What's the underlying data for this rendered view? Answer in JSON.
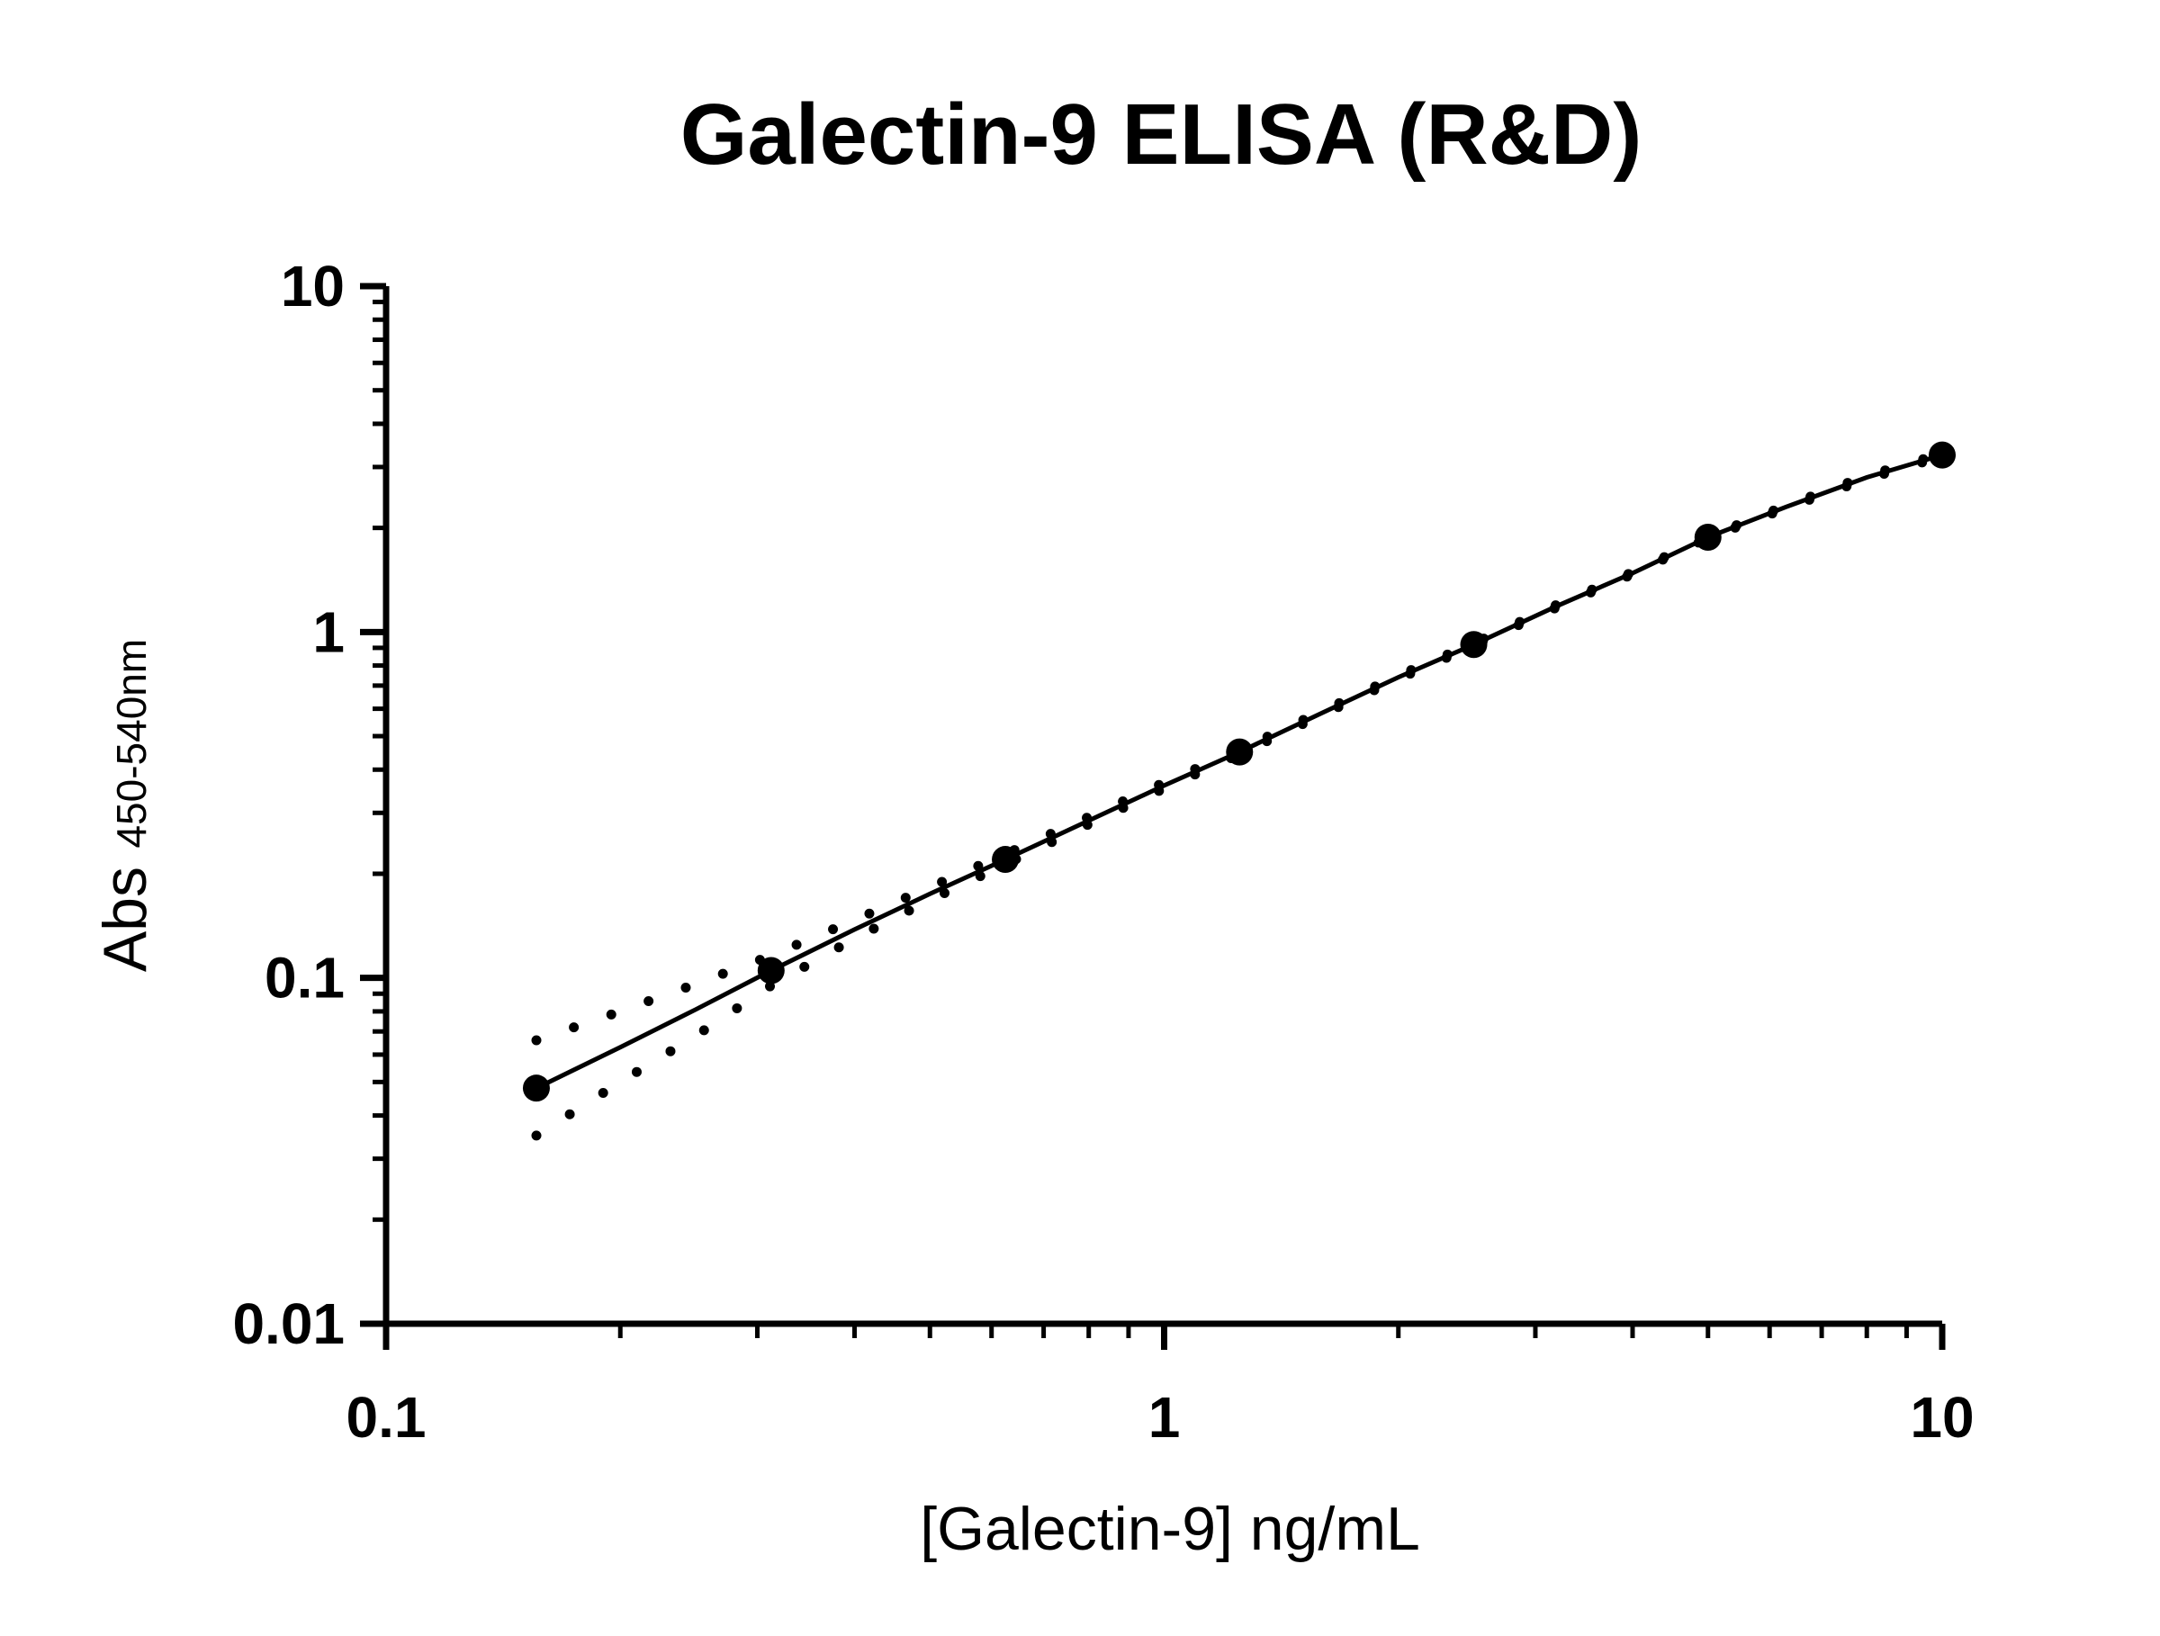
{
  "chart_data": {
    "type": "scatter",
    "title": "Galectin-9 ELISA (R&D)",
    "xlabel": "[Galectin-9] ng/mL",
    "ylabel": "Abs",
    "ylabel_subscript": "450-540nm",
    "x_scale": "log",
    "y_scale": "log",
    "xlim": [
      0.1,
      10
    ],
    "ylim": [
      0.01,
      10
    ],
    "x_ticks": [
      0.1,
      1,
      10
    ],
    "x_tick_labels": [
      "0.1",
      "1",
      "10"
    ],
    "y_ticks": [
      0.01,
      0.1,
      1,
      10
    ],
    "y_tick_labels": [
      "0.01",
      "0.1",
      "1",
      "10"
    ],
    "grid": false,
    "legend": "none",
    "colors": {
      "ink": "#000000",
      "background": "#ffffff"
    },
    "series": [
      {
        "role": "standards",
        "x": [
          0.156,
          0.3125,
          0.625,
          1.25,
          2.5,
          5,
          10
        ],
        "y": [
          0.048,
          0.105,
          0.22,
          0.45,
          0.92,
          1.88,
          3.25
        ]
      }
    ],
    "fit_curve": {
      "style": "solid",
      "x": [
        0.156,
        0.2,
        0.25,
        0.3125,
        0.4,
        0.5,
        0.625,
        0.8,
        1.0,
        1.25,
        1.6,
        2.0,
        2.5,
        3.2,
        4.0,
        5.0,
        6.3,
        8.0,
        10.0
      ],
      "y": [
        0.048,
        0.063,
        0.081,
        0.105,
        0.138,
        0.175,
        0.22,
        0.285,
        0.36,
        0.45,
        0.585,
        0.74,
        0.92,
        1.19,
        1.48,
        1.88,
        2.3,
        2.8,
        3.25
      ]
    },
    "confidence_band": {
      "style": "dotted",
      "x": [
        0.156,
        0.2,
        0.25,
        0.3125,
        0.4,
        0.5,
        0.625,
        0.8,
        1.0,
        1.25,
        1.6,
        2.0,
        2.5,
        3.2,
        4.0,
        5.0,
        6.3,
        8.0,
        10.0
      ],
      "upper": [
        0.066,
        0.08,
        0.096,
        0.116,
        0.147,
        0.183,
        0.228,
        0.292,
        0.367,
        0.457,
        0.592,
        0.748,
        0.928,
        1.2,
        1.49,
        1.89,
        2.32,
        2.83,
        3.28
      ],
      "lower": [
        0.035,
        0.05,
        0.068,
        0.095,
        0.13,
        0.168,
        0.213,
        0.278,
        0.353,
        0.443,
        0.578,
        0.732,
        0.912,
        1.18,
        1.47,
        1.87,
        2.28,
        2.77,
        3.22
      ]
    }
  }
}
